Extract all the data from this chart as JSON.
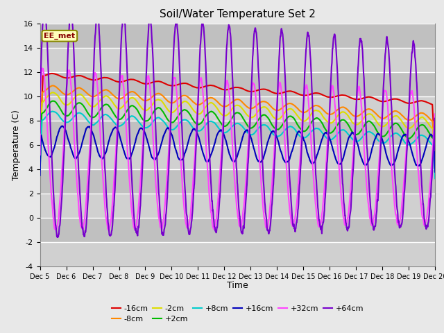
{
  "title": "Soil/Water Temperature Set 2",
  "xlabel": "Time",
  "ylabel": "Temperature (C)",
  "ylim": [
    -4,
    16
  ],
  "xlim": [
    0,
    15
  ],
  "annotation": "EE_met",
  "tick_labels": [
    "Dec 5",
    "Dec 6",
    "Dec 7",
    "Dec 8",
    "Dec 9",
    "Dec 10",
    "Dec 11",
    "Dec 12",
    "Dec 13",
    "Dec 14",
    "Dec 15",
    "Dec 16",
    "Dec 17",
    "Dec 18",
    "Dec 19",
    "Dec 20"
  ],
  "yticks": [
    -4,
    -2,
    0,
    2,
    4,
    6,
    8,
    10,
    12,
    14,
    16
  ],
  "series_order": [
    "-16cm",
    "-8cm",
    "-2cm",
    "+2cm",
    "+8cm",
    "+16cm",
    "+32cm",
    "+64cm"
  ],
  "colors": {
    "-16cm": "#dd0000",
    "-8cm": "#ff8800",
    "-2cm": "#dddd00",
    "+2cm": "#00bb00",
    "+8cm": "#00cccc",
    "+16cm": "#0000bb",
    "+32cm": "#ff44ff",
    "+64cm": "#7700cc"
  },
  "fig_bg": "#e8e8e8",
  "plot_bg": "#d8d8d8",
  "stripe_bg": "#c8c8c8",
  "grid_color": "#ffffff"
}
